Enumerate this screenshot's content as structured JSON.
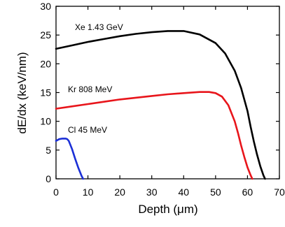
{
  "chart_data": {
    "type": "line",
    "xlabel": "Depth (μm)",
    "ylabel": "dE/dx  (keV/nm)",
    "xlim": [
      0,
      70
    ],
    "ylim": [
      0,
      30
    ],
    "xticks": [
      0,
      10,
      20,
      30,
      40,
      50,
      60,
      70
    ],
    "yticks": [
      0,
      5,
      10,
      15,
      20,
      25,
      30
    ],
    "xticks_text": [
      "0",
      "10",
      "20",
      "30",
      "40",
      "50",
      "60",
      "70"
    ],
    "yticks_text": [
      "0",
      "5",
      "10",
      "15",
      "20",
      "25",
      "30"
    ],
    "grid": false,
    "legend": "none",
    "series": [
      {
        "name": "Xe 1.43 GeV",
        "color": "#000000",
        "x": [
          0,
          5,
          10,
          15,
          20,
          25,
          30,
          35,
          40,
          45,
          50,
          53,
          56,
          58,
          60,
          61,
          62,
          63,
          64,
          65,
          65.5
        ],
        "y": [
          22.6,
          23.2,
          23.8,
          24.3,
          24.8,
          25.2,
          25.5,
          25.7,
          25.7,
          25.1,
          23.6,
          21.8,
          18.8,
          15.8,
          11.8,
          9.0,
          6.5,
          4.2,
          2.2,
          0.6,
          0
        ]
      },
      {
        "name": "Kr 808 MeV",
        "color": "#e8151b",
        "x": [
          0,
          5,
          10,
          15,
          20,
          25,
          30,
          35,
          40,
          45,
          48,
          50,
          52,
          54,
          56,
          57,
          58,
          59,
          60,
          61,
          61.5
        ],
        "y": [
          12.2,
          12.6,
          13.0,
          13.4,
          13.8,
          14.1,
          14.4,
          14.7,
          14.9,
          15.1,
          15.1,
          14.9,
          14.3,
          12.8,
          10.0,
          8.0,
          5.8,
          3.8,
          2.0,
          0.6,
          0
        ]
      },
      {
        "name": "Cl 45 MeV",
        "color": "#1b2fd6",
        "x": [
          0,
          1,
          2,
          3,
          3.5,
          4,
          5,
          6,
          7,
          8,
          8.5
        ],
        "y": [
          6.6,
          6.9,
          7.0,
          7.0,
          6.9,
          6.6,
          5.2,
          3.5,
          1.9,
          0.5,
          0
        ]
      }
    ]
  }
}
